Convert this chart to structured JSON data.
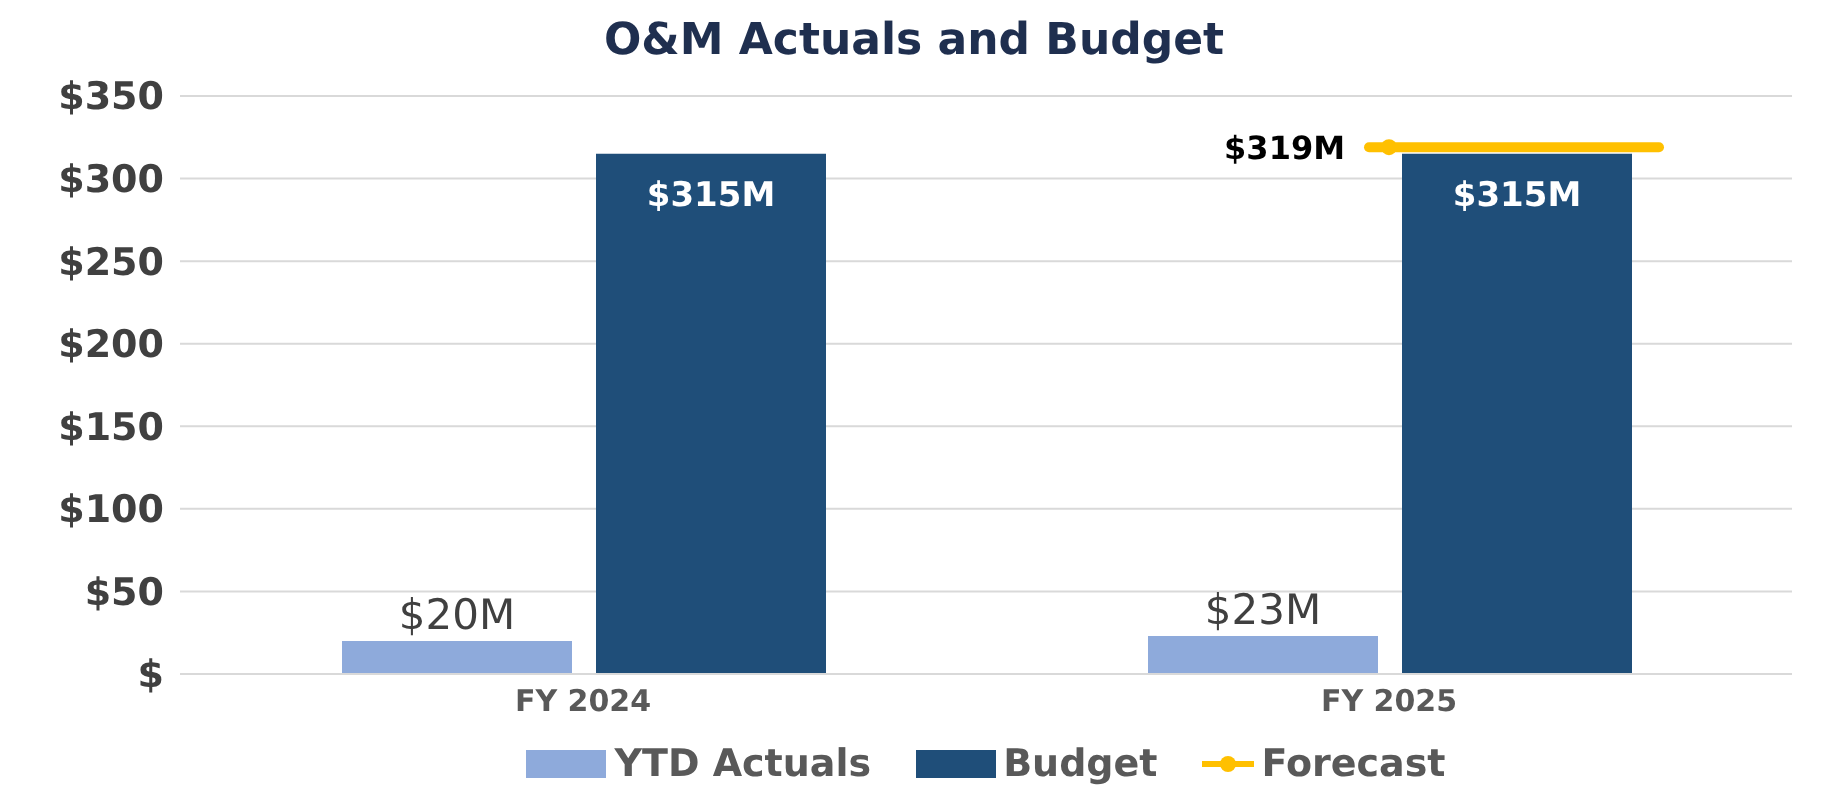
{
  "chart_data": {
    "type": "bar",
    "title": "O&M Actuals and Budget",
    "categories": [
      "FY 2024",
      "FY 2025"
    ],
    "series": [
      {
        "name": "YTD Actuals",
        "color": "#8eaadb",
        "values": [
          20,
          23
        ],
        "value_labels": [
          "$20M",
          "$23M"
        ]
      },
      {
        "name": "Budget",
        "color": "#1f4e79",
        "values": [
          315,
          315
        ],
        "value_labels": [
          "$315M",
          "$315M"
        ]
      },
      {
        "name": "Forecast",
        "type": "line",
        "color": "#ffc000",
        "values": [
          null,
          319
        ],
        "value_labels": [
          null,
          "$319M"
        ]
      }
    ],
    "ylim": [
      0,
      350
    ],
    "yticks": [
      {
        "value": 0,
        "label": "$"
      },
      {
        "value": 50,
        "label": "$50"
      },
      {
        "value": 100,
        "label": "$100"
      },
      {
        "value": 150,
        "label": "$150"
      },
      {
        "value": 200,
        "label": "$200"
      },
      {
        "value": 250,
        "label": "$250"
      },
      {
        "value": 300,
        "label": "$300"
      },
      {
        "value": 350,
        "label": "$350"
      }
    ],
    "grid": "y",
    "legend": "bottom",
    "marker": "circle"
  }
}
